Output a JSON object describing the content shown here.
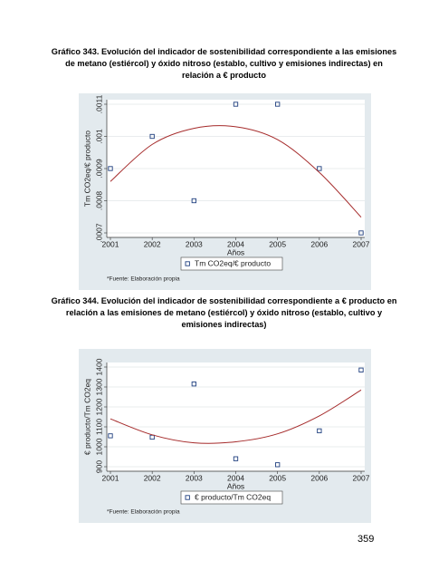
{
  "captions": [
    "Gráfico 343. Evolución del indicador de sostenibilidad correspondiente a las emisiones de metano (estiércol) y óxido nitroso (establo, cultivo y emisiones indirectas) en relación a € producto",
    "Gráfico 344. Evolución del indicador de sostenibilidad correspondiente a € producto en relación a las emisiones de metano (estiércol) y óxido nitroso (establo, cultivo y emisiones indirectas)"
  ],
  "page_number": "359",
  "chart_data": [
    {
      "type": "scatter",
      "xlabel": "Años",
      "ylabel": "Tm CO2eq/€ producto",
      "note": "*Fuente: Elaboración propia",
      "x": [
        2001,
        2002,
        2003,
        2004,
        2005,
        2006,
        2007
      ],
      "xlim": [
        2001,
        2007
      ],
      "xticks": [
        2001,
        2002,
        2003,
        2004,
        2005,
        2006,
        2007
      ],
      "ylim": [
        0.0007,
        0.0011
      ],
      "yticks": [
        {
          "value": 0.0007,
          "label": ".0007"
        },
        {
          "value": 0.0008,
          "label": ".0008"
        },
        {
          "value": 0.0009,
          "label": ".0009"
        },
        {
          "value": 0.001,
          "label": ".001"
        },
        {
          "value": 0.0011,
          "label": ".0011"
        }
      ],
      "grid": true,
      "legend": "bottom",
      "series": [
        {
          "name": "Tm CO2eq/€ producto",
          "color": "#1f3f7f",
          "values": [
            0.0009,
            0.001,
            0.0008,
            0.0011,
            0.0011,
            0.0009,
            0.0007
          ]
        },
        {
          "color": "#a52a2a",
          "style": "line",
          "values": [
            0.00086,
            0.000975,
            0.001025,
            0.00103,
            0.00099,
            0.000888,
            0.000749
          ]
        }
      ]
    },
    {
      "type": "scatter",
      "xlabel": "Años",
      "ylabel": "€ producto/Tm CO2eq",
      "note": "*Fuente: Elaboración propia",
      "x": [
        2001,
        2002,
        2003,
        2004,
        2005,
        2006,
        2007
      ],
      "xlim": [
        2001,
        2007
      ],
      "xticks": [
        2001,
        2002,
        2003,
        2004,
        2005,
        2006,
        2007
      ],
      "ylim": [
        900,
        1400
      ],
      "yticks": [
        900,
        1000,
        1100,
        1200,
        1300,
        1400
      ],
      "grid": true,
      "legend": "bottom",
      "series": [
        {
          "name": "€ producto/Tm CO2eq",
          "color": "#1f3f7f",
          "values": [
            1055,
            1048,
            1315,
            940,
            910,
            1080,
            1385
          ]
        },
        {
          "color": "#a52a2a",
          "style": "line",
          "values": [
            1140,
            1060,
            1020,
            1025,
            1065,
            1155,
            1285
          ]
        }
      ]
    }
  ]
}
